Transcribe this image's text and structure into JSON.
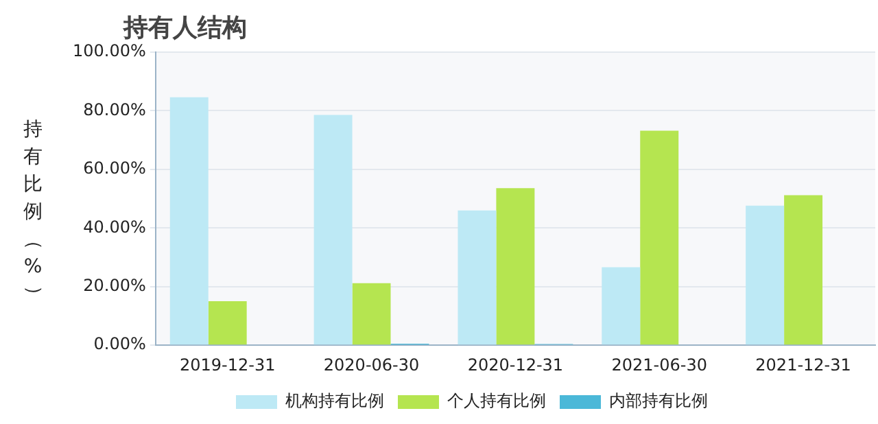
{
  "chart_data": {
    "type": "bar",
    "title": "持有人结构",
    "ylabel": "持有比例（%）",
    "categories": [
      "2019-12-31",
      "2020-06-30",
      "2020-12-31",
      "2021-06-30",
      "2021-12-31"
    ],
    "series": [
      {
        "name": "机构持有比例",
        "color": "#bde9f5",
        "values": [
          84.6,
          78.6,
          46,
          26.6,
          47.6
        ]
      },
      {
        "name": "个人持有比例",
        "color": "#b5e550",
        "values": [
          15,
          21.2,
          53.6,
          73.2,
          51.2
        ]
      },
      {
        "name": "内部持有比例",
        "color": "#4bb8d8",
        "values": [
          0,
          0.5,
          0.4,
          0,
          0
        ]
      }
    ],
    "ylim": [
      0,
      100
    ],
    "yticks": [
      {
        "value": 0,
        "label": "0.00%"
      },
      {
        "value": 20,
        "label": "20.00%"
      },
      {
        "value": 40,
        "label": "40.00%"
      },
      {
        "value": 60,
        "label": "60.00%"
      },
      {
        "value": 80,
        "label": "80.00%"
      },
      {
        "value": 100,
        "label": "100.00%"
      }
    ],
    "grid": "y",
    "legend": "bottom"
  }
}
